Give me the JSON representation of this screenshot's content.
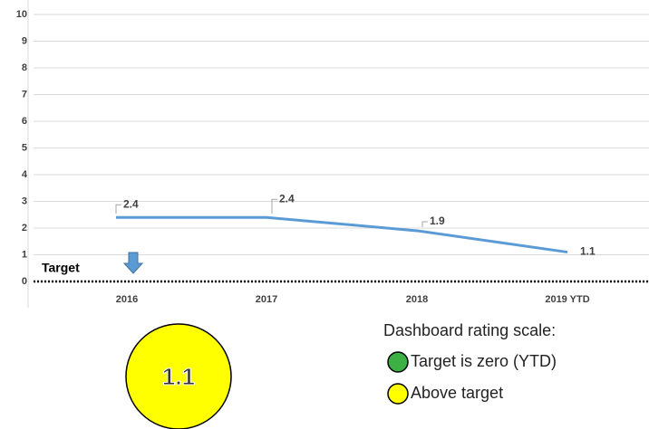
{
  "chart_data": {
    "type": "line",
    "categories": [
      "2016",
      "2017",
      "2018",
      "2019 YTD"
    ],
    "values": [
      2.4,
      2.4,
      1.9,
      1.1
    ],
    "color": "#5b9bd5",
    "ylim": [
      0,
      10
    ],
    "yticks": [
      0,
      1,
      2,
      3,
      4,
      5,
      6,
      7,
      8,
      9,
      10
    ],
    "grid": true,
    "target": {
      "label": "Target",
      "value": 0,
      "color": "#000000",
      "arrow_color": "#5b9bd5"
    }
  },
  "rating_scale": {
    "title": "Dashboard rating scale:",
    "items": [
      {
        "label": "Target is zero (YTD)",
        "color": "#3cb043"
      },
      {
        "label": "Above target",
        "color": "#ffff00"
      }
    ]
  },
  "current_rating": {
    "value": 1.1,
    "color": "#ffff00"
  }
}
